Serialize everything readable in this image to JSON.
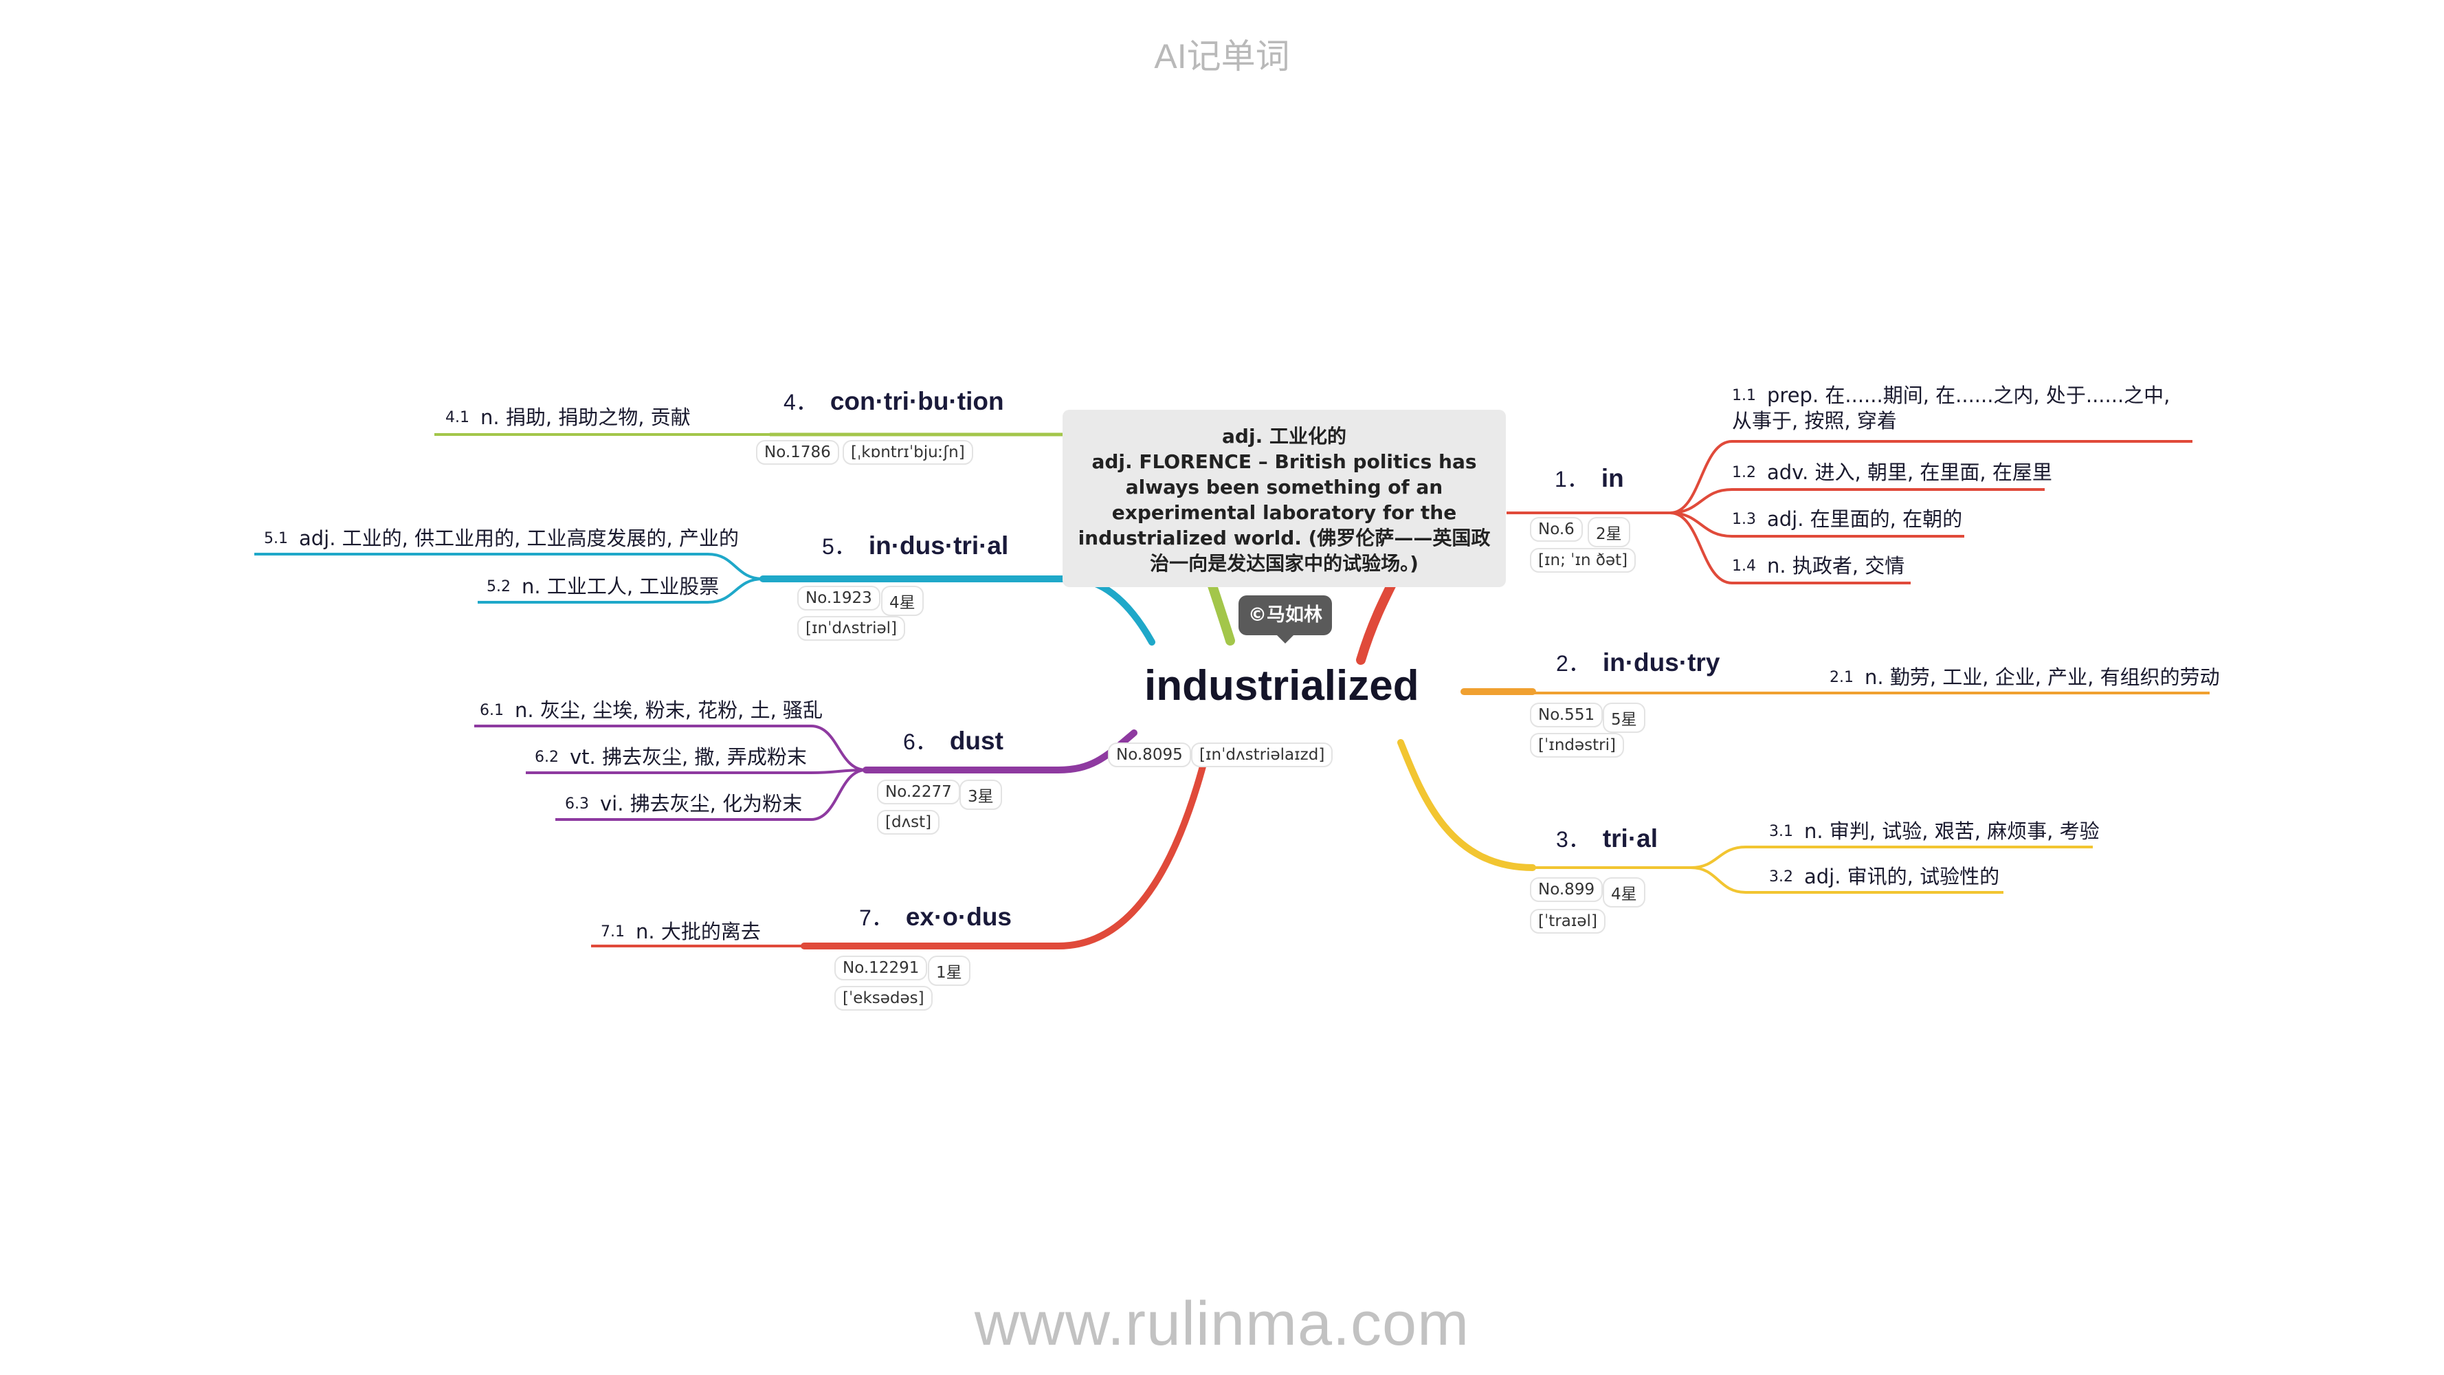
{
  "app_title": "AI记单词",
  "footer_url": "www.rulinma.com",
  "copyright": "©马如林",
  "center": {
    "word": "industrialized",
    "number": "No.8095",
    "phonetic": "[ɪnˈdʌstriəlaɪzd]",
    "example": [
      "adj. 工业化的",
      "adj. FLORENCE – British politics has always been something of an experimental laboratory for the industrialized world. (佛罗伦萨——英国政治一向是发达国家中的试验场。)"
    ]
  },
  "branches": [
    {
      "num": "1．",
      "word": "in",
      "color": "#e04a3a",
      "number": "No.6",
      "stars": "2星",
      "phonetic": "[ɪn; ˈɪn ðət]",
      "defs": [
        {
          "idx": "1.1",
          "text": "prep. 在......期间, 在......之内, 处于......之中, 从事于, 按照, 穿着"
        },
        {
          "idx": "1.2",
          "text": "adv. 进入, 朝里, 在里面, 在屋里"
        },
        {
          "idx": "1.3",
          "text": "adj. 在里面的, 在朝的"
        },
        {
          "idx": "1.4",
          "text": "n. 执政者, 交情"
        }
      ]
    },
    {
      "num": "2．",
      "word": "in·dus·try",
      "color": "#f0a030",
      "number": "No.551",
      "stars": "5星",
      "phonetic": "[ˈɪndəstri]",
      "defs": [
        {
          "idx": "2.1",
          "text": "n. 勤劳, 工业, 企业, 产业, 有组织的劳动"
        }
      ]
    },
    {
      "num": "3．",
      "word": "tri·al",
      "color": "#f2c531",
      "number": "No.899",
      "stars": "4星",
      "phonetic": "[ˈtraɪəl]",
      "defs": [
        {
          "idx": "3.1",
          "text": "n. 审判, 试验, 艰苦, 麻烦事, 考验"
        },
        {
          "idx": "3.2",
          "text": "adj. 审讯的, 试验性的"
        }
      ]
    },
    {
      "num": "4．",
      "word": "con·tri·bu·tion",
      "color": "#a3c64a",
      "number": "No.1786",
      "stars": "",
      "phonetic": "[ˌkɒntrɪˈbjuːʃn]",
      "defs": [
        {
          "idx": "4.1",
          "text": "n. 捐助, 捐助之物, 贡献"
        }
      ]
    },
    {
      "num": "5．",
      "word": "in·dus·tri·al",
      "color": "#1fa8c9",
      "number": "No.1923",
      "stars": "4星",
      "phonetic": "[ɪnˈdʌstriəl]",
      "defs": [
        {
          "idx": "5.1",
          "text": "adj. 工业的, 供工业用的, 工业高度发展的, 产业的"
        },
        {
          "idx": "5.2",
          "text": "n. 工业工人, 工业股票"
        }
      ]
    },
    {
      "num": "6．",
      "word": "dust",
      "color": "#8e3aa0",
      "number": "No.2277",
      "stars": "3星",
      "phonetic": "[dʌst]",
      "defs": [
        {
          "idx": "6.1",
          "text": "n. 灰尘, 尘埃, 粉末, 花粉, 土, 骚乱"
        },
        {
          "idx": "6.2",
          "text": "vt. 拂去灰尘, 撒, 弄成粉末"
        },
        {
          "idx": "6.3",
          "text": "vi. 拂去灰尘, 化为粉末"
        }
      ]
    },
    {
      "num": "7．",
      "word": "ex·o·dus",
      "color": "#e04a3a",
      "number": "No.12291",
      "stars": "1星",
      "phonetic": "[ˈeksədəs]",
      "defs": [
        {
          "idx": "7.1",
          "text": "n. 大批的离去"
        }
      ]
    }
  ]
}
